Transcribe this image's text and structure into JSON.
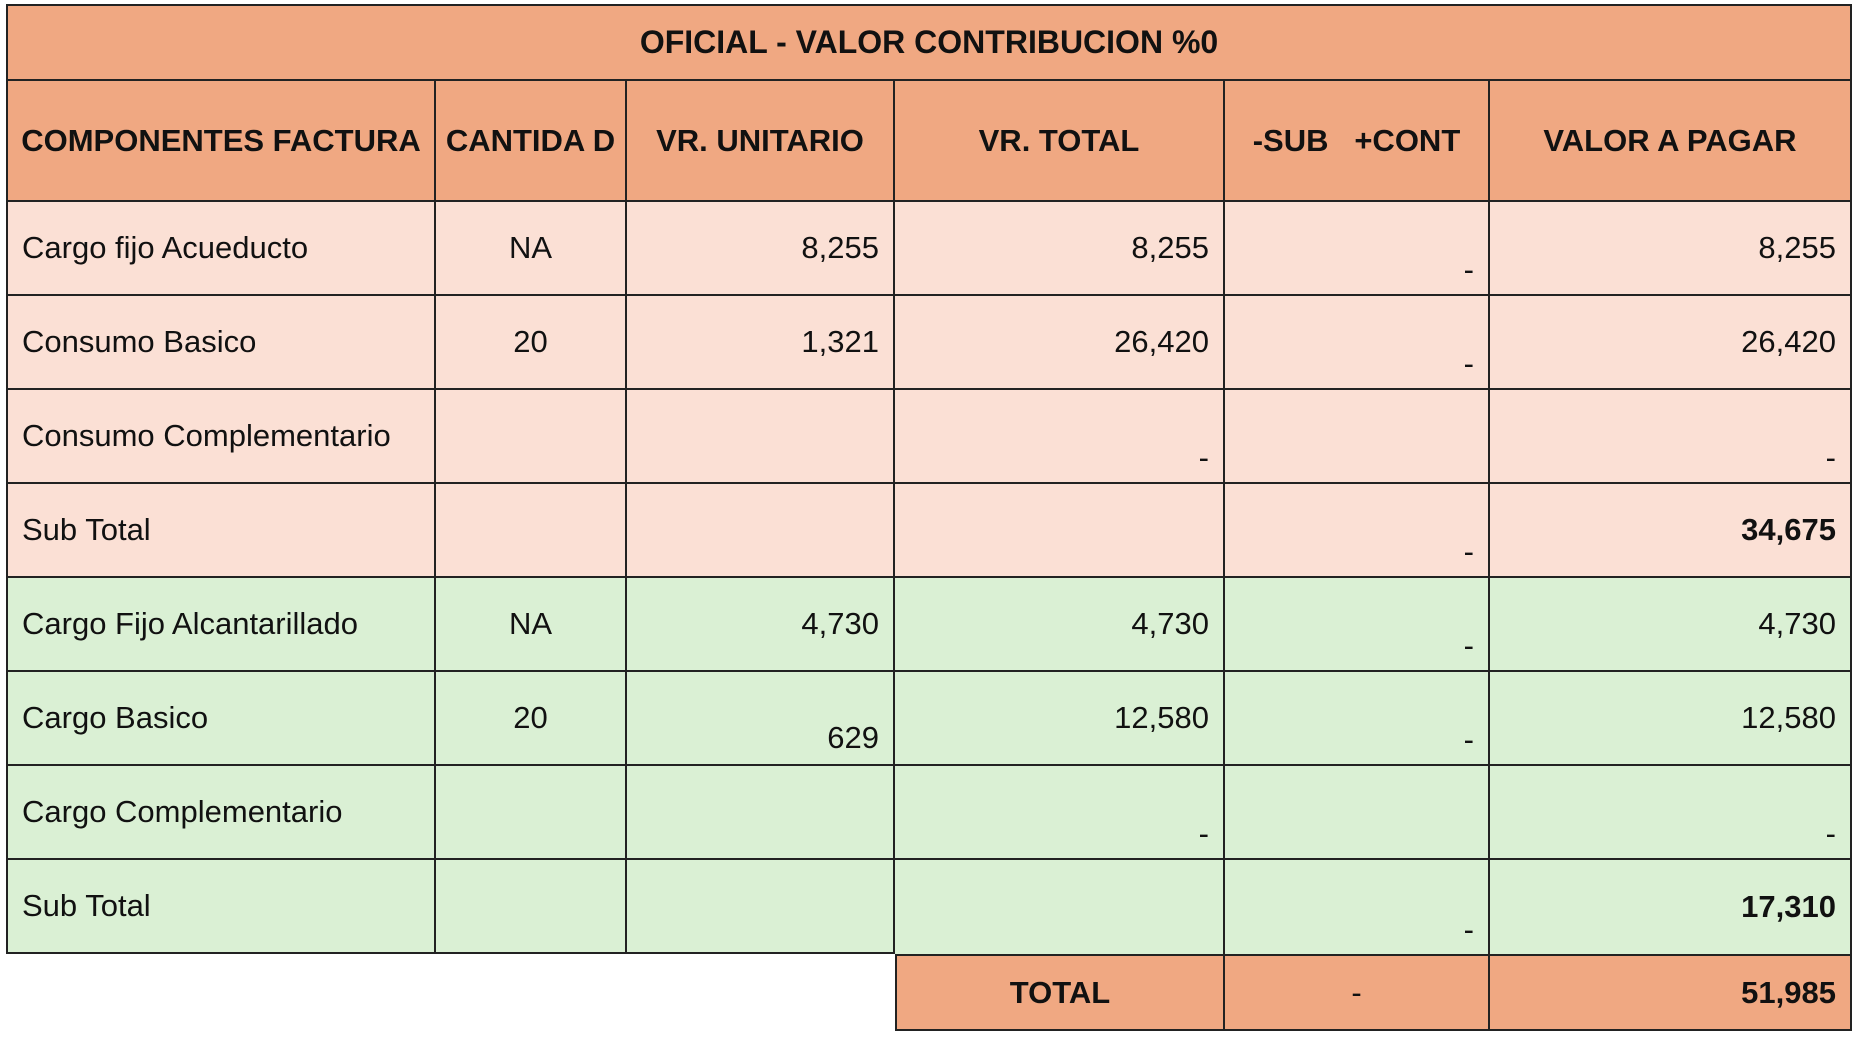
{
  "title": "OFICIAL - VALOR CONTRIBUCION %0",
  "headers": {
    "componentes": "COMPONENTES FACTURA",
    "cantidad": "CANTIDA D",
    "vr_unitario": "VR. UNITARIO",
    "vr_total": "VR. TOTAL",
    "sub_cont": "-SUB   +CONT",
    "valor_pagar": "VALOR A PAGAR"
  },
  "acueducto": [
    {
      "componente": "Cargo fijo Acueducto",
      "cantidad": "NA",
      "vr_unitario": "8,255",
      "vr_total": "8,255",
      "sub_cont": "-",
      "valor_pagar": "8,255"
    },
    {
      "componente": "Consumo Basico",
      "cantidad": "20",
      "vr_unitario": "1,321",
      "vr_total": "26,420",
      "sub_cont": "-",
      "valor_pagar": "26,420"
    },
    {
      "componente": "Consumo Complementario",
      "cantidad": "",
      "vr_unitario": "",
      "vr_total": "-",
      "sub_cont": "",
      "valor_pagar": "-"
    },
    {
      "componente": "Sub Total",
      "cantidad": "",
      "vr_unitario": "",
      "vr_total": "",
      "sub_cont": "-",
      "valor_pagar": "34,675"
    }
  ],
  "alcantarillado": [
    {
      "componente": "Cargo Fijo Alcantarillado",
      "cantidad": "NA",
      "vr_unitario": "4,730",
      "vr_total": "4,730",
      "sub_cont": "-",
      "valor_pagar": "4,730"
    },
    {
      "componente": "Cargo Basico",
      "cantidad": "20",
      "vr_unitario": "629",
      "vr_total": "12,580",
      "sub_cont": "-",
      "valor_pagar": "12,580"
    },
    {
      "componente": "Cargo Complementario",
      "cantidad": "",
      "vr_unitario": "",
      "vr_total": "-",
      "sub_cont": "",
      "valor_pagar": "-"
    },
    {
      "componente": "Sub Total",
      "cantidad": "",
      "vr_unitario": "",
      "vr_total": "",
      "sub_cont": "-",
      "valor_pagar": "17,310"
    }
  ],
  "total": {
    "label": "TOTAL",
    "sub_cont": "-",
    "valor_pagar": "51,985"
  },
  "colors": {
    "header": "#f0a882",
    "acueducto": "#fbe0d5",
    "alcantarillado": "#daf0d4"
  }
}
